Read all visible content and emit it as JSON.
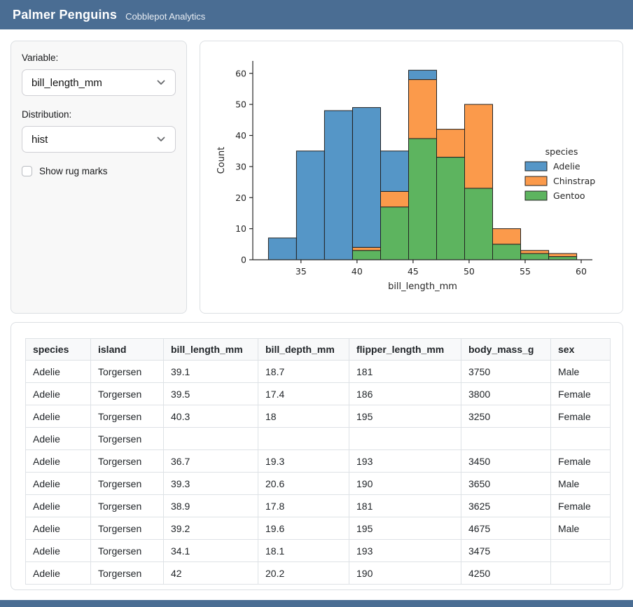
{
  "header": {
    "title": "Palmer Penguins",
    "subtitle": "Cobblepot Analytics"
  },
  "sidebar": {
    "variable_label": "Variable:",
    "variable_value": "bill_length_mm",
    "distribution_label": "Distribution:",
    "distribution_value": "hist",
    "rug_label": "Show rug marks",
    "rug_checked": false
  },
  "chart_data": {
    "type": "bar",
    "subtype": "stacked-histogram",
    "title": "",
    "xlabel": "bill_length_mm",
    "ylabel": "Count",
    "legend_title": "species",
    "legend_position": "right",
    "grid": false,
    "bin_start": 32.1,
    "bin_width": 2.5,
    "bin_edges": [
      32.1,
      34.6,
      37.1,
      39.6,
      42.1,
      44.6,
      47.1,
      49.6,
      52.1,
      54.6,
      57.1,
      59.6
    ],
    "xlim": [
      30.7,
      61.0
    ],
    "ylim": [
      0,
      64
    ],
    "xticks": [
      35,
      40,
      45,
      50,
      55,
      60
    ],
    "yticks": [
      0,
      10,
      20,
      30,
      40,
      50,
      60
    ],
    "stack_order_bottom_to_top": [
      "Gentoo",
      "Chinstrap",
      "Adelie"
    ],
    "series": [
      {
        "name": "Adelie",
        "color": "#5596c7",
        "values": [
          7,
          35,
          48,
          45,
          13,
          3,
          0,
          0,
          0,
          0,
          0
        ]
      },
      {
        "name": "Chinstrap",
        "color": "#fb9a4b",
        "values": [
          0,
          0,
          0,
          1,
          5,
          19,
          9,
          27,
          5,
          1,
          1
        ]
      },
      {
        "name": "Gentoo",
        "color": "#5db45f",
        "values": [
          0,
          0,
          0,
          3,
          17,
          39,
          33,
          23,
          5,
          2,
          1
        ]
      }
    ],
    "bar_totals": [
      7,
      35,
      48,
      49,
      35,
      61,
      42,
      50,
      10,
      3,
      2
    ],
    "bar_edge_color": "#222222"
  },
  "table": {
    "columns": [
      "species",
      "island",
      "bill_length_mm",
      "bill_depth_mm",
      "flipper_length_mm",
      "body_mass_g",
      "sex"
    ],
    "rows": [
      [
        "Adelie",
        "Torgersen",
        "39.1",
        "18.7",
        "181",
        "3750",
        "Male"
      ],
      [
        "Adelie",
        "Torgersen",
        "39.5",
        "17.4",
        "186",
        "3800",
        "Female"
      ],
      [
        "Adelie",
        "Torgersen",
        "40.3",
        "18",
        "195",
        "3250",
        "Female"
      ],
      [
        "Adelie",
        "Torgersen",
        "",
        "",
        "",
        "",
        ""
      ],
      [
        "Adelie",
        "Torgersen",
        "36.7",
        "19.3",
        "193",
        "3450",
        "Female"
      ],
      [
        "Adelie",
        "Torgersen",
        "39.3",
        "20.6",
        "190",
        "3650",
        "Male"
      ],
      [
        "Adelie",
        "Torgersen",
        "38.9",
        "17.8",
        "181",
        "3625",
        "Female"
      ],
      [
        "Adelie",
        "Torgersen",
        "39.2",
        "19.6",
        "195",
        "4675",
        "Male"
      ],
      [
        "Adelie",
        "Torgersen",
        "34.1",
        "18.1",
        "193",
        "3475",
        ""
      ],
      [
        "Adelie",
        "Torgersen",
        "42",
        "20.2",
        "190",
        "4250",
        ""
      ]
    ]
  },
  "colors": {
    "header_bg": "#4a6d93",
    "sidebar_bg": "#f8f8f8",
    "card_border": "#dcdfe3",
    "table_border": "#dee2e6",
    "table_header_bg": "#f8f9fa"
  }
}
